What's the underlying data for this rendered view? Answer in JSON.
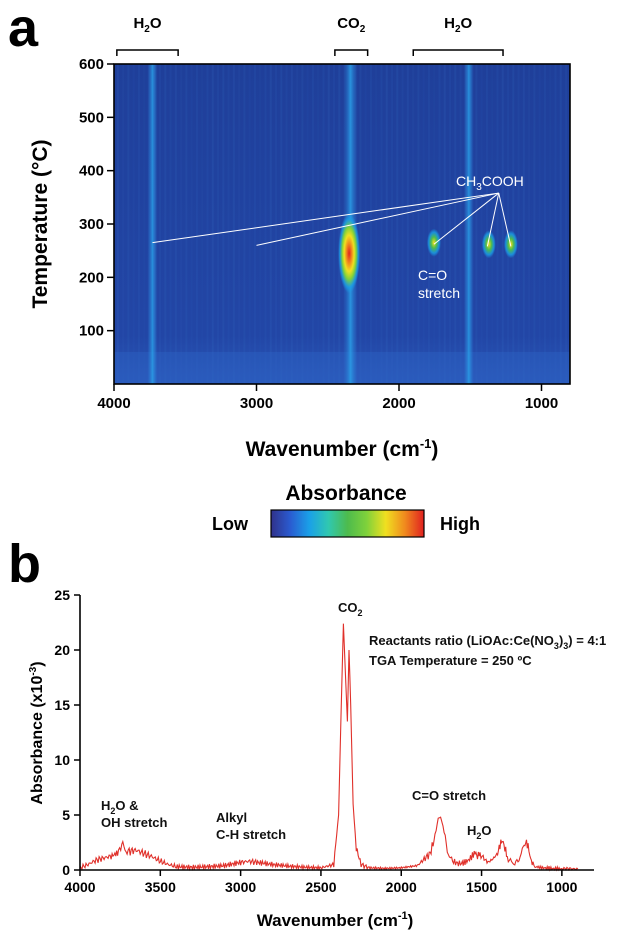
{
  "panel_a": {
    "letter": "a",
    "xlabel": "Wavenumber (cm",
    "xlabel_sup": "-1",
    "xlabel_end": ")",
    "ylabel": "Temperature (°C)",
    "brackets": [
      {
        "label": "H",
        "sub": "2",
        "tail": "O",
        "from": 3980,
        "to": 3550
      },
      {
        "label": "CO",
        "sub": "2",
        "tail": "",
        "from": 2450,
        "to": 2220
      },
      {
        "label": "H",
        "sub": "2",
        "tail": "O",
        "from": 1900,
        "to": 1270
      }
    ],
    "annotations": {
      "acetic": {
        "pre": "CH",
        "sub1": "3",
        "post": "COOH"
      },
      "co_line1": "C=O",
      "co_line2": "stretch"
    },
    "colorbar": {
      "title": "Absorbance",
      "low": "Low",
      "high": "High",
      "colors": [
        "#30318a",
        "#2a5bd0",
        "#1aa0e8",
        "#30c8b0",
        "#4dbb4d",
        "#7fd13b",
        "#f0e020",
        "#f08a1e",
        "#e02020"
      ]
    }
  },
  "panel_b": {
    "letter": "b",
    "co2_label": {
      "pre": "CO",
      "sub": "2"
    },
    "info_line1": {
      "pre": "Reactants ratio (LiOAc:Ce(NO",
      "sub": "3",
      "post": ")",
      "sub2": "3",
      "post2": ") = 4:1"
    },
    "info_line2": "TGA Temperature = 250 ºC",
    "peak_labels": {
      "water_oh_1a": "H",
      "water_oh_1sub": "2",
      "water_oh_1b": "O &",
      "water_oh_2": "OH stretch",
      "alkyl_1": "Alkyl",
      "alkyl_2": "C-H stretch",
      "co_stretch": "C=O stretch",
      "h2o_a": "H",
      "h2o_sub": "2",
      "h2o_b": "O"
    },
    "ylabel": "Absorbance (x10",
    "ylabel_sup": "-3",
    "ylabel_end": ")",
    "xlabel": "Wavenumber (cm",
    "xlabel_sup": "-1",
    "xlabel_end": ")"
  },
  "chart_data": [
    {
      "type": "heatmap",
      "xlabel": "Wavenumber (cm-1)",
      "ylabel": "Temperature (°C)",
      "xlim": [
        4000,
        800
      ],
      "ylim": [
        0,
        600
      ],
      "x_ticks": [
        4000,
        3000,
        2000,
        1000
      ],
      "y_ticks": [
        100,
        200,
        300,
        400,
        500,
        600
      ],
      "features": [
        {
          "wavenumber": 3730,
          "temperature": [
            0,
            600
          ],
          "level": "low"
        },
        {
          "wavenumber": 2340,
          "temperature": [
            0,
            600
          ],
          "level": "medium"
        },
        {
          "wavenumber": 2350,
          "temperature": 245,
          "level": "high"
        },
        {
          "wavenumber": 1755,
          "temperature": 265,
          "level": "medium"
        },
        {
          "wavenumber": 1510,
          "temperature": [
            0,
            600
          ],
          "level": "low"
        },
        {
          "wavenumber": 1370,
          "temperature": 262,
          "level": "medium"
        },
        {
          "wavenumber": 1215,
          "temperature": 262,
          "level": "medium"
        }
      ]
    },
    {
      "type": "line",
      "xlabel": "Wavenumber (cm-1)",
      "ylabel": "Absorbance (x10-3)",
      "xlim": [
        4000,
        800
      ],
      "ylim": [
        0,
        25
      ],
      "x_ticks": [
        4000,
        3500,
        3000,
        2500,
        2000,
        1500,
        1000
      ],
      "y_ticks": [
        0,
        5,
        10,
        15,
        20,
        25
      ],
      "color": "#e0302a",
      "x": [
        4000,
        3950,
        3900,
        3850,
        3800,
        3760,
        3740,
        3720,
        3700,
        3650,
        3600,
        3550,
        3500,
        3450,
        3400,
        3300,
        3200,
        3100,
        3000,
        2950,
        2900,
        2800,
        2700,
        2600,
        2500,
        2420,
        2390,
        2375,
        2360,
        2345,
        2335,
        2325,
        2315,
        2300,
        2280,
        2250,
        2200,
        2100,
        2000,
        1900,
        1820,
        1790,
        1770,
        1755,
        1740,
        1720,
        1700,
        1680,
        1650,
        1620,
        1580,
        1540,
        1525,
        1510,
        1490,
        1460,
        1430,
        1400,
        1385,
        1370,
        1355,
        1340,
        1320,
        1300,
        1280,
        1260,
        1240,
        1225,
        1215,
        1205,
        1195,
        1180,
        1160,
        1120,
        1080,
        1040,
        1000,
        950,
        900
      ],
      "values": [
        0.2,
        0.5,
        0.9,
        1.1,
        1.3,
        1.6,
        2.5,
        1.8,
        1.7,
        1.8,
        1.5,
        1.2,
        0.8,
        0.5,
        0.3,
        0.25,
        0.3,
        0.4,
        0.7,
        0.8,
        0.7,
        0.5,
        0.35,
        0.25,
        0.2,
        0.5,
        5,
        14,
        22.4,
        17,
        13.5,
        20,
        15,
        6,
        2,
        0.5,
        0.2,
        0.15,
        0.2,
        0.4,
        1.5,
        3,
        4.7,
        4.8,
        4,
        2.2,
        1.2,
        0.8,
        0.6,
        0.6,
        0.9,
        1.6,
        1.2,
        1.6,
        1.1,
        0.7,
        1.0,
        1.5,
        2.3,
        2.7,
        2.0,
        1.2,
        0.8,
        0.6,
        0.7,
        1.2,
        2.0,
        2.5,
        2.4,
        1.8,
        1.0,
        0.5,
        0.3,
        0.2,
        0.15,
        0.1,
        0.1,
        0.1,
        0.1
      ]
    }
  ]
}
